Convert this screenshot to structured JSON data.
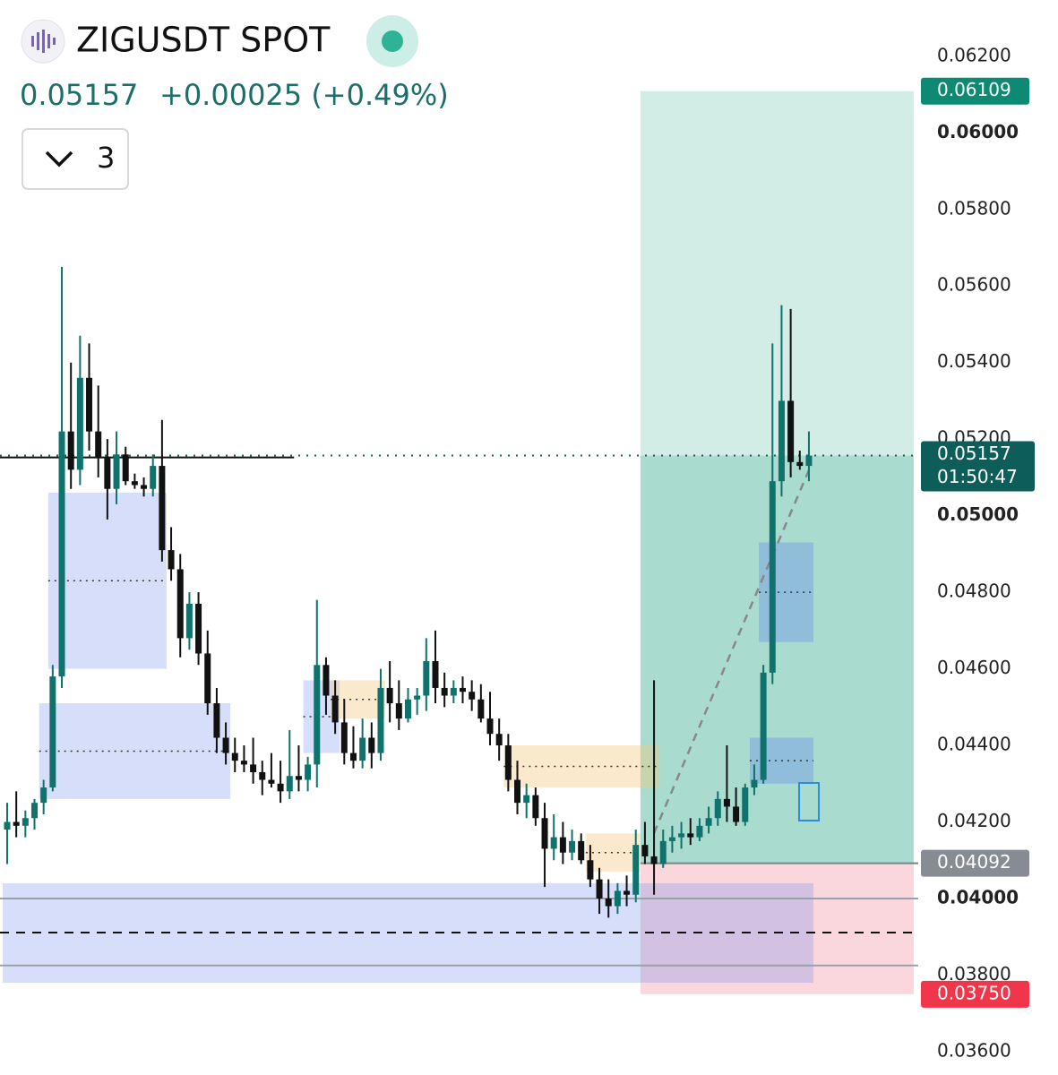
{
  "header": {
    "title": "ZIGUSDT SPOT",
    "price": "0.05157",
    "change": "+0.00025 (+0.49%)",
    "interval": "3"
  },
  "chart_data": {
    "type": "candlestick",
    "ylim": [
      0.03539,
      0.06347
    ],
    "yticks": [
      {
        "value": 0.062,
        "label": "0.06200"
      },
      {
        "value": 0.06,
        "label": "0.06000",
        "bold": true
      },
      {
        "value": 0.058,
        "label": "0.05800"
      },
      {
        "value": 0.056,
        "label": "0.05600"
      },
      {
        "value": 0.054,
        "label": "0.05400"
      },
      {
        "value": 0.052,
        "label": "0.05200"
      },
      {
        "value": 0.05,
        "label": "0.05000",
        "bold": true
      },
      {
        "value": 0.048,
        "label": "0.04800"
      },
      {
        "value": 0.046,
        "label": "0.04600"
      },
      {
        "value": 0.044,
        "label": "0.04400"
      },
      {
        "value": 0.042,
        "label": "0.04200"
      },
      {
        "value": 0.04,
        "label": "0.04000",
        "bold": true
      },
      {
        "value": 0.038,
        "label": "0.03800"
      },
      {
        "value": 0.036,
        "label": "0.03600"
      }
    ],
    "up_color": "#10726c",
    "down_color": "#111111",
    "open": [
      0.0418,
      0.042,
      0.0419,
      0.0421,
      0.0425,
      0.0429,
      0.0458,
      0.0522,
      0.0512,
      0.0536,
      0.0522,
      0.0515,
      0.0507,
      0.0516,
      0.0509,
      0.0508,
      0.0507,
      0.0513,
      0.0491,
      0.0486,
      0.0468,
      0.0477,
      0.0464,
      0.0451,
      0.0442,
      0.0438,
      0.0436,
      0.0435,
      0.0433,
      0.0431,
      0.043,
      0.0428,
      0.0432,
      0.0431,
      0.0435,
      0.0461,
      0.0453,
      0.0446,
      0.0438,
      0.0436,
      0.0442,
      0.0438,
      0.0455,
      0.0451,
      0.0447,
      0.0452,
      0.0453,
      0.0462,
      0.0455,
      0.0453,
      0.0455,
      0.0454,
      0.0452,
      0.0447,
      0.0443,
      0.044,
      0.0431,
      0.0425,
      0.0427,
      0.0421,
      0.0413,
      0.0416,
      0.0412,
      0.0415,
      0.041,
      0.0405,
      0.04,
      0.0398,
      0.0402,
      0.0401,
      0.0414,
      0.0411,
      0.0409,
      0.0415,
      0.0416,
      0.0417,
      0.0416,
      0.0419,
      0.0421,
      0.0426,
      0.0424,
      0.042,
      0.0429,
      0.0431,
      0.0459,
      0.0509,
      0.053,
      0.0514,
      0.0513
    ],
    "high": [
      0.0425,
      0.0428,
      0.0423,
      0.0426,
      0.0431,
      0.0461,
      0.0565,
      0.054,
      0.0547,
      0.0545,
      0.0534,
      0.052,
      0.0522,
      0.0518,
      0.0511,
      0.051,
      0.0516,
      0.0525,
      0.0497,
      0.049,
      0.048,
      0.048,
      0.047,
      0.0455,
      0.0446,
      0.0442,
      0.044,
      0.0442,
      0.0436,
      0.0438,
      0.0436,
      0.0444,
      0.044,
      0.0437,
      0.0478,
      0.0463,
      0.0457,
      0.0452,
      0.0445,
      0.0447,
      0.0446,
      0.046,
      0.0462,
      0.0457,
      0.0455,
      0.0455,
      0.0468,
      0.047,
      0.0459,
      0.0457,
      0.0458,
      0.0457,
      0.0456,
      0.0454,
      0.0447,
      0.0443,
      0.0436,
      0.043,
      0.0429,
      0.0425,
      0.0422,
      0.042,
      0.0418,
      0.0417,
      0.0414,
      0.0408,
      0.0405,
      0.0404,
      0.0406,
      0.0418,
      0.042,
      0.0457,
      0.0418,
      0.0419,
      0.042,
      0.0421,
      0.0421,
      0.0424,
      0.0428,
      0.044,
      0.0429,
      0.043,
      0.0435,
      0.0461,
      0.0545,
      0.0555,
      0.0554,
      0.0517,
      0.0522
    ],
    "low": [
      0.0409,
      0.0416,
      0.0416,
      0.0418,
      0.0422,
      0.0428,
      0.0455,
      0.0507,
      0.0508,
      0.0517,
      0.051,
      0.0499,
      0.0503,
      0.0508,
      0.0507,
      0.0505,
      0.0505,
      0.0488,
      0.0483,
      0.0463,
      0.0465,
      0.0461,
      0.0448,
      0.0438,
      0.0435,
      0.0433,
      0.0433,
      0.043,
      0.0427,
      0.0429,
      0.0425,
      0.0426,
      0.0428,
      0.0428,
      0.0429,
      0.0448,
      0.0443,
      0.0435,
      0.0434,
      0.0434,
      0.0434,
      0.0436,
      0.0446,
      0.0444,
      0.0446,
      0.0448,
      0.0449,
      0.0451,
      0.045,
      0.0451,
      0.0451,
      0.0449,
      0.0446,
      0.044,
      0.0436,
      0.0428,
      0.0422,
      0.0421,
      0.0419,
      0.0403,
      0.041,
      0.0409,
      0.041,
      0.0409,
      0.0403,
      0.0396,
      0.0395,
      0.0396,
      0.0398,
      0.0399,
      0.0409,
      0.0401,
      0.0408,
      0.0412,
      0.0413,
      0.0414,
      0.0415,
      0.0417,
      0.0419,
      0.042,
      0.0419,
      0.0419,
      0.0427,
      0.043,
      0.0456,
      0.0505,
      0.051,
      0.0512,
      0.0509
    ],
    "close": [
      0.042,
      0.0419,
      0.0421,
      0.0425,
      0.0429,
      0.0458,
      0.0522,
      0.0512,
      0.0536,
      0.0522,
      0.0515,
      0.0507,
      0.0516,
      0.0509,
      0.0508,
      0.0507,
      0.0513,
      0.0491,
      0.0486,
      0.0468,
      0.0477,
      0.0464,
      0.0451,
      0.0442,
      0.0438,
      0.0436,
      0.0435,
      0.0433,
      0.0431,
      0.043,
      0.0428,
      0.0432,
      0.0431,
      0.0435,
      0.0461,
      0.0453,
      0.0446,
      0.0438,
      0.0436,
      0.0442,
      0.0438,
      0.0455,
      0.0451,
      0.0447,
      0.0452,
      0.0453,
      0.0462,
      0.0455,
      0.0453,
      0.0455,
      0.0454,
      0.0452,
      0.0447,
      0.0443,
      0.044,
      0.0431,
      0.0425,
      0.0427,
      0.0421,
      0.0413,
      0.0416,
      0.0412,
      0.0415,
      0.041,
      0.0405,
      0.04,
      0.0398,
      0.0402,
      0.0401,
      0.0414,
      0.0411,
      0.0409,
      0.0415,
      0.0416,
      0.0417,
      0.0416,
      0.0419,
      0.0421,
      0.0426,
      0.0424,
      0.042,
      0.0429,
      0.0431,
      0.0459,
      0.0509,
      0.053,
      0.0514,
      0.0513,
      0.05157
    ],
    "zones": [
      {
        "x0": 5,
        "x1": 17,
        "top": 0.0506,
        "bottom": 0.046,
        "color": "rgba(110,135,235,0.28)",
        "midline": true
      },
      {
        "x0": 4,
        "x1": 24,
        "top": 0.0451,
        "bottom": 0.0426,
        "color": "rgba(110,135,235,0.28)",
        "midline": true
      },
      {
        "x0": 0,
        "x1": 88,
        "top": 0.0404,
        "bottom": 0.0378,
        "color": "rgba(110,135,235,0.28)",
        "midline": false
      },
      {
        "x0": 33,
        "x1": 36,
        "top": 0.0457,
        "bottom": 0.0438,
        "color": "rgba(110,135,235,0.28)",
        "midline": true
      },
      {
        "x0": 36,
        "x1": 41,
        "top": 0.0457,
        "bottom": 0.0447,
        "color": "rgba(245,200,130,0.4)",
        "midline": true
      },
      {
        "x0": 55,
        "x1": 71,
        "top": 0.044,
        "bottom": 0.0429,
        "color": "rgba(245,200,130,0.4)",
        "midline": true
      },
      {
        "x0": 64,
        "x1": 69,
        "top": 0.0417,
        "bottom": 0.0407,
        "color": "rgba(245,200,130,0.4)",
        "midline": true
      },
      {
        "x0": 83,
        "x1": 88,
        "top": 0.0493,
        "bottom": 0.0467,
        "color": "rgba(110,150,230,0.45)",
        "midline": true
      },
      {
        "x0": 82,
        "x1": 88,
        "top": 0.0442,
        "bottom": 0.043,
        "color": "rgba(110,150,230,0.45)",
        "midline": true
      }
    ],
    "levels": [
      {
        "value": 0.05152,
        "color": "#111111",
        "dash": "none",
        "x1": 31
      },
      {
        "value": 0.04,
        "color": "#9aa0a8",
        "dash": "none",
        "x1": 100
      },
      {
        "value": 0.03825,
        "color": "#9aa0a8",
        "dash": "none",
        "x1": 100
      },
      {
        "value": 0.03911,
        "color": "#111111",
        "dash": "10,8",
        "x1": 99
      }
    ],
    "position": {
      "x0": 70,
      "x1": 99,
      "entry": 0.04092,
      "target": 0.06109,
      "stop": 0.0375
    },
    "tags": [
      {
        "value": 0.06109,
        "label": "0.06109",
        "color": "#0f8a72"
      },
      {
        "value": 0.04092,
        "label": "0.04092",
        "color": "#868b94"
      },
      {
        "value": 0.0375,
        "label": "0.03750",
        "color": "#f0364a"
      },
      {
        "value": 0.05157,
        "label": "0.05157",
        "sub": "01:50:47",
        "color": "#0d5e5a"
      }
    ]
  }
}
